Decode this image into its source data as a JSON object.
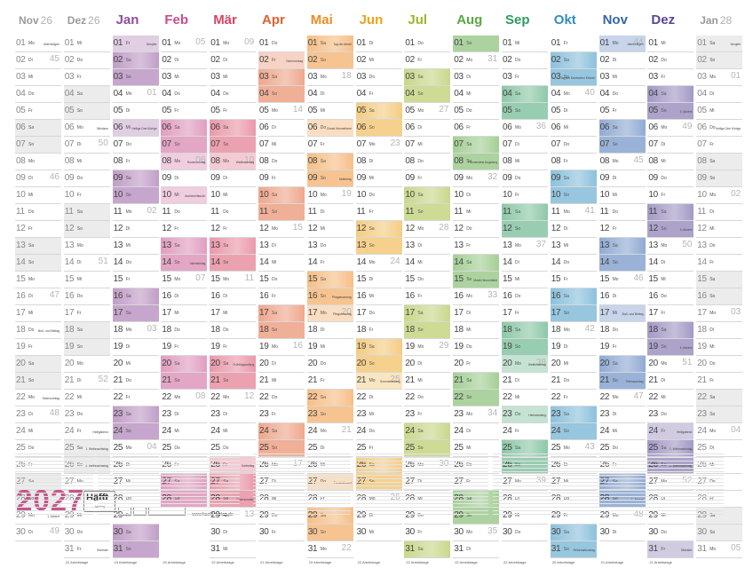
{
  "year": "2027",
  "publisher": {
    "name": "Häfft",
    "sub": "Verlag",
    "url": "www.haefft-verlag.de"
  },
  "months": [
    {
      "name": "Nov",
      "sub": "26",
      "start": 0,
      "days": 30,
      "color": "#9a9a9a",
      "fade": true,
      "kw": [
        [
          2,
          "45"
        ],
        [
          9,
          "46"
        ],
        [
          16,
          "47"
        ],
        [
          23,
          "48"
        ],
        [
          30,
          "49"
        ]
      ],
      "hol": [
        [
          1,
          "Allerheiligen"
        ],
        [
          18,
          "Buß- und Bettag"
        ],
        [
          22,
          "Totensonntag"
        ],
        [
          29,
          "1. Advent"
        ]
      ],
      "foot": ""
    },
    {
      "name": "Dez",
      "sub": "26",
      "start": 2,
      "days": 31,
      "color": "#9a9a9a",
      "fade": true,
      "kw": [
        [
          7,
          "50"
        ],
        [
          14,
          "51"
        ],
        [
          21,
          "52"
        ],
        [
          28,
          "53"
        ]
      ],
      "hol": [
        [
          6,
          "Nikolaus"
        ],
        [
          24,
          "Heiligabend"
        ],
        [
          25,
          "1. Weihnachtstag"
        ],
        [
          26,
          "2. Weihnachtstag"
        ],
        [
          31,
          "Silvester"
        ]
      ],
      "foot": "22 Arbeitstage"
    },
    {
      "name": "Jan",
      "sub": "",
      "start": 4,
      "days": 31,
      "color": "#8e4e9a",
      "kw": [
        [
          4,
          "01"
        ],
        [
          11,
          "02"
        ],
        [
          18,
          "03"
        ],
        [
          25,
          "04"
        ]
      ],
      "hol": [
        [
          1,
          "Neujahr"
        ],
        [
          6,
          "Heilige Drei Könige"
        ]
      ],
      "foot": "19 Arbeitstage"
    },
    {
      "name": "Feb",
      "sub": "",
      "start": 0,
      "days": 28,
      "color": "#c84d8c",
      "kw": [
        [
          1,
          "05"
        ],
        [
          8,
          "06"
        ],
        [
          15,
          "07"
        ],
        [
          22,
          "08"
        ]
      ],
      "hol": [
        [
          8,
          "Rosenmontag"
        ],
        [
          10,
          "Aschermittwoch"
        ],
        [
          14,
          "Valentinstag"
        ]
      ],
      "foot": "20 Arbeitstage"
    },
    {
      "name": "Mär",
      "sub": "",
      "start": 0,
      "days": 31,
      "color": "#d94464",
      "kw": [
        [
          1,
          "09"
        ],
        [
          8,
          "10"
        ],
        [
          15,
          "11"
        ],
        [
          22,
          "12"
        ],
        [
          29,
          "13"
        ]
      ],
      "hol": [
        [
          8,
          "Weltfrauentag"
        ],
        [
          20,
          "Frühlingsanfang"
        ],
        [
          26,
          "Karfreitag"
        ],
        [
          28,
          "Ostersonntag"
        ]
      ],
      "foot": "22 Arbeitstage"
    },
    {
      "name": "Apr",
      "sub": "",
      "start": 3,
      "days": 30,
      "color": "#e2602f",
      "kw": [
        [
          5,
          "14"
        ],
        [
          12,
          "15"
        ],
        [
          19,
          "16"
        ],
        [
          26,
          "17"
        ]
      ],
      "hol": [
        [
          2,
          "Ostermontag"
        ]
      ],
      "foot": "21 Arbeitstage"
    },
    {
      "name": "Mai",
      "sub": "",
      "start": 5,
      "days": 31,
      "color": "#ef8a24",
      "kw": [
        [
          3,
          "18"
        ],
        [
          10,
          "19"
        ],
        [
          17,
          "20"
        ],
        [
          24,
          "21"
        ],
        [
          31,
          "22"
        ]
      ],
      "hol": [
        [
          1,
          "Tag der Arbeit"
        ],
        [
          6,
          "Christi Himmelfahrt"
        ],
        [
          9,
          "Muttertag"
        ],
        [
          16,
          "Pfingstsonntag"
        ],
        [
          17,
          "Pfingstmontag"
        ],
        [
          27,
          "Fronleichnam"
        ]
      ],
      "foot": "19 Arbeitstage"
    },
    {
      "name": "Jun",
      "sub": "",
      "start": 1,
      "days": 30,
      "color": "#eba31c",
      "kw": [
        [
          7,
          "23"
        ],
        [
          14,
          "24"
        ],
        [
          21,
          "25"
        ],
        [
          28,
          "26"
        ]
      ],
      "hol": [
        [
          21,
          "Sommeranfang"
        ]
      ],
      "foot": "22 Arbeitstage"
    },
    {
      "name": "Jul",
      "sub": "",
      "start": 3,
      "days": 31,
      "color": "#9bb82c",
      "kw": [
        [
          5,
          "27"
        ],
        [
          12,
          "28"
        ],
        [
          19,
          "29"
        ],
        [
          26,
          "30"
        ]
      ],
      "hol": [],
      "foot": "22 Arbeitstage"
    },
    {
      "name": "Aug",
      "sub": "",
      "start": 6,
      "days": 31,
      "color": "#5aa840",
      "kw": [
        [
          2,
          "31"
        ],
        [
          9,
          "32"
        ],
        [
          16,
          "33"
        ],
        [
          23,
          "34"
        ],
        [
          30,
          "35"
        ]
      ],
      "hol": [
        [
          8,
          "Friedensfest Augsburg"
        ],
        [
          15,
          "Mariä Himmelfahrt"
        ]
      ],
      "foot": "22 Arbeitstage"
    },
    {
      "name": "Sep",
      "sub": "",
      "start": 2,
      "days": 30,
      "color": "#2f9b61",
      "kw": [
        [
          6,
          "36"
        ],
        [
          13,
          "37"
        ],
        [
          20,
          "38"
        ],
        [
          27,
          "39"
        ]
      ],
      "hol": [
        [
          20,
          "Weltkindertag"
        ],
        [
          23,
          "Herbstanfang"
        ]
      ],
      "foot": "22 Arbeitstage"
    },
    {
      "name": "Okt",
      "sub": "",
      "start": 4,
      "days": 31,
      "color": "#2f8ec0",
      "kw": [
        [
          4,
          "40"
        ],
        [
          11,
          "41"
        ],
        [
          18,
          "42"
        ],
        [
          25,
          "43"
        ]
      ],
      "hol": [
        [
          3,
          "Tag der Deutschen Einheit"
        ],
        [
          31,
          "Reformationstag"
        ]
      ],
      "foot": "20 Arbeitstage"
    },
    {
      "name": "Nov",
      "sub": "",
      "start": 0,
      "days": 30,
      "color": "#3565b0",
      "kw": [
        [
          1,
          "44"
        ],
        [
          8,
          "45"
        ],
        [
          15,
          "46"
        ],
        [
          22,
          "47"
        ],
        [
          29,
          "48"
        ]
      ],
      "hol": [
        [
          1,
          "Allerheiligen"
        ],
        [
          17,
          "Buß- und Bettag"
        ],
        [
          21,
          "Totensonntag"
        ],
        [
          28,
          "1. Advent"
        ]
      ],
      "foot": "21 Arbeitstage"
    },
    {
      "name": "Dez",
      "sub": "",
      "start": 2,
      "days": 31,
      "color": "#5a4596",
      "kw": [
        [
          6,
          "49"
        ],
        [
          13,
          "50"
        ],
        [
          20,
          "51"
        ],
        [
          27,
          "52"
        ]
      ],
      "hol": [
        [
          5,
          "2. Advent"
        ],
        [
          12,
          "3. Advent"
        ],
        [
          19,
          "4. Advent"
        ],
        [
          24,
          "Heiligabend"
        ],
        [
          25,
          "1. Weihnachtstag"
        ],
        [
          26,
          "2. Weihnachtstag"
        ],
        [
          31,
          "Silvester"
        ]
      ],
      "foot": "21 Arbeitstage"
    },
    {
      "name": "Jan",
      "sub": "28",
      "start": 5,
      "days": 31,
      "color": "#9a9a9a",
      "fade": true,
      "kw": [
        [
          3,
          "01"
        ],
        [
          10,
          "02"
        ],
        [
          17,
          "03"
        ],
        [
          24,
          "04"
        ],
        [
          31,
          "05"
        ]
      ],
      "hol": [
        [
          1,
          "Neujahr"
        ],
        [
          6,
          "Heilige Drei Könige"
        ]
      ],
      "foot": ""
    }
  ],
  "weekdays": [
    "Mo",
    "Di",
    "Mi",
    "Do",
    "Fr",
    "Sa",
    "So"
  ]
}
